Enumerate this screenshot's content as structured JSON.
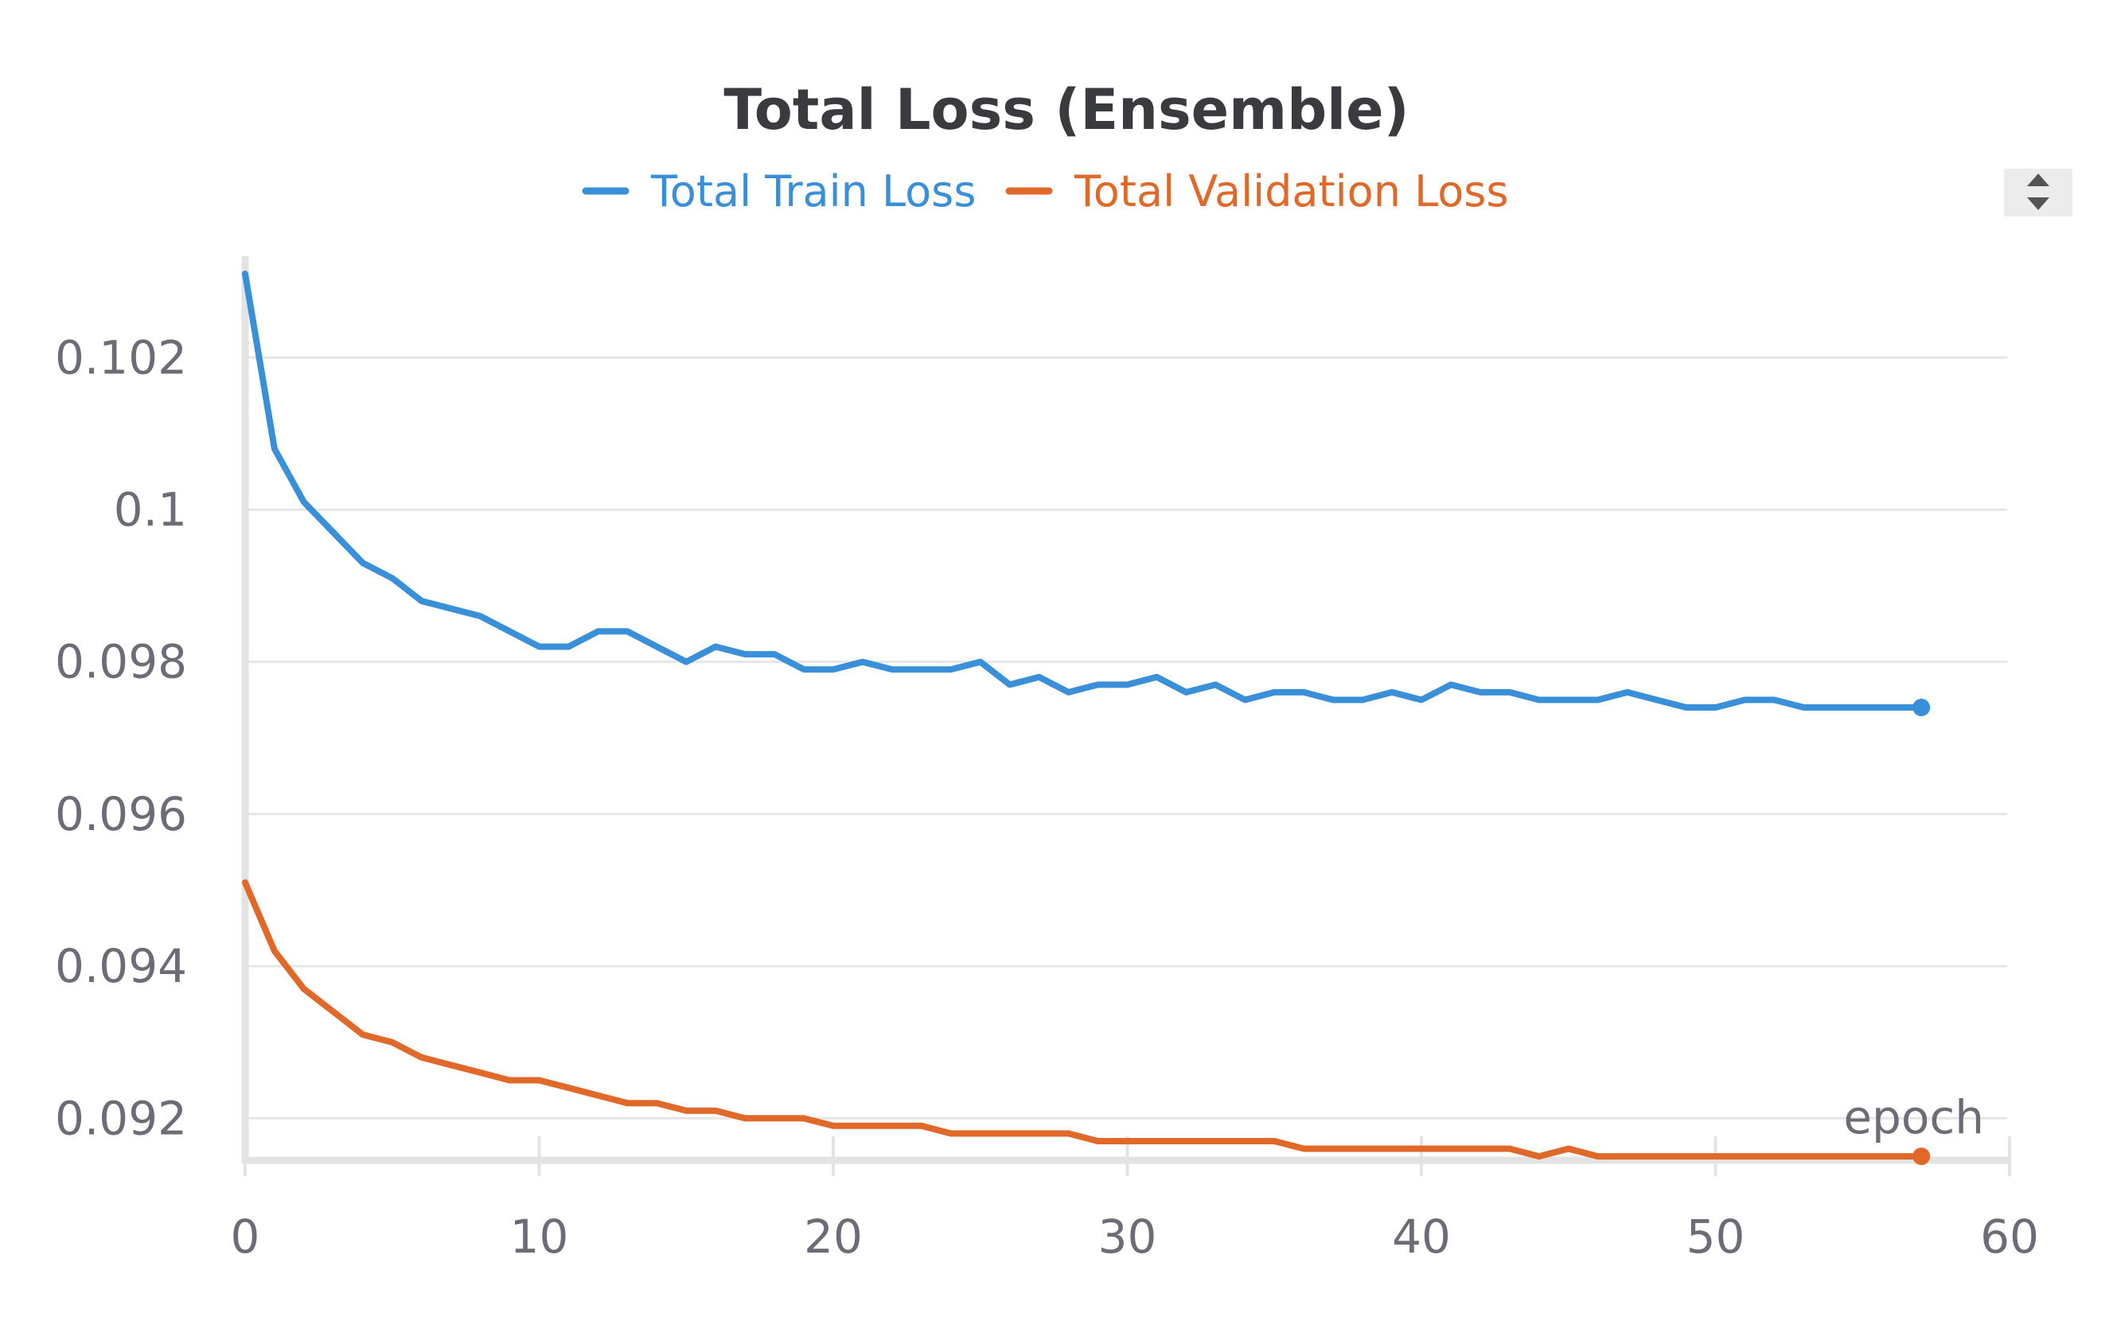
{
  "colors": {
    "train": "#3a8fd9",
    "validation": "#e0692a",
    "sort_button_bg": "#ececec",
    "sort_button_icon": "#555555"
  },
  "controls": {
    "sort_icon": "sort-up-down-icon"
  },
  "chart_data": {
    "type": "line",
    "title": "Total Loss (Ensemble)",
    "xlabel": "epoch",
    "ylabel": "",
    "xlim": [
      0,
      60
    ],
    "ylim": [
      0.09148,
      0.1033
    ],
    "x_ticks": [
      0,
      10,
      20,
      30,
      40,
      50,
      60
    ],
    "x_tick_labels": [
      "0",
      "10",
      "20",
      "30",
      "40",
      "50",
      "60"
    ],
    "y_ticks": [
      0.092,
      0.094,
      0.096,
      0.098,
      0.1,
      0.102
    ],
    "y_tick_labels": [
      "0.092",
      "0.094",
      "0.096",
      "0.098",
      "0.1",
      "0.102"
    ],
    "grid": true,
    "legend_position": "top-center",
    "x": [
      0,
      1,
      2,
      3,
      4,
      5,
      6,
      7,
      8,
      9,
      10,
      11,
      12,
      13,
      14,
      15,
      16,
      17,
      18,
      19,
      20,
      21,
      22,
      23,
      24,
      25,
      26,
      27,
      28,
      29,
      30,
      31,
      32,
      33,
      34,
      35,
      36,
      37,
      38,
      39,
      40,
      41,
      42,
      43,
      44,
      45,
      46,
      47,
      48,
      49,
      50,
      51,
      52,
      53,
      54,
      55,
      56,
      57
    ],
    "series": [
      {
        "name": "Total Train Loss",
        "color": "#3a8fd9",
        "values": [
          0.1031,
          0.1008,
          0.1001,
          0.0997,
          0.0993,
          0.0991,
          0.0988,
          0.0987,
          0.0986,
          0.0984,
          0.0982,
          0.0982,
          0.0984,
          0.0984,
          0.0982,
          0.098,
          0.0982,
          0.0981,
          0.0981,
          0.0979,
          0.0979,
          0.098,
          0.0979,
          0.0979,
          0.0979,
          0.098,
          0.0977,
          0.0978,
          0.0976,
          0.0977,
          0.0977,
          0.0978,
          0.0976,
          0.0977,
          0.0975,
          0.0976,
          0.0976,
          0.0975,
          0.0975,
          0.0976,
          0.0975,
          0.0977,
          0.0976,
          0.0976,
          0.0975,
          0.0975,
          0.0975,
          0.0976,
          0.0975,
          0.0974,
          0.0974,
          0.0975,
          0.0975,
          0.0974,
          0.0974,
          0.0974,
          0.0974,
          0.0974
        ]
      },
      {
        "name": "Total Validation Loss",
        "color": "#e0692a",
        "values": [
          0.0951,
          0.0942,
          0.0937,
          0.0934,
          0.0931,
          0.093,
          0.0928,
          0.0927,
          0.0926,
          0.0925,
          0.0925,
          0.0924,
          0.0923,
          0.0922,
          0.0922,
          0.0921,
          0.0921,
          0.092,
          0.092,
          0.092,
          0.0919,
          0.0919,
          0.0919,
          0.0919,
          0.0918,
          0.0918,
          0.0918,
          0.0918,
          0.0918,
          0.0917,
          0.0917,
          0.0917,
          0.0917,
          0.0917,
          0.0917,
          0.0917,
          0.0916,
          0.0916,
          0.0916,
          0.0916,
          0.0916,
          0.0916,
          0.0916,
          0.0916,
          0.0915,
          0.0916,
          0.0915,
          0.0915,
          0.0915,
          0.0915,
          0.0915,
          0.0915,
          0.0915,
          0.0915,
          0.0915,
          0.0915,
          0.0915,
          0.0915
        ]
      }
    ]
  }
}
